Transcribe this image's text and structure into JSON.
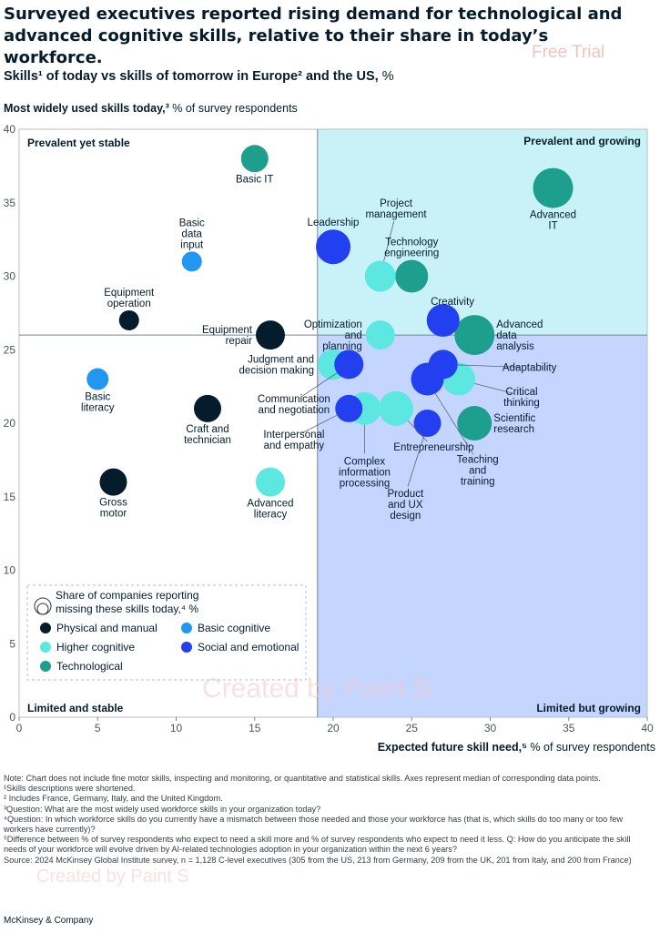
{
  "title": "Surveyed executives reported rising demand for technological and advanced cognitive skills, relative to their share in today’s workforce.",
  "watermark": "Free Trial",
  "watermark2": "Created by Paint S",
  "subtitle": {
    "bold": "Skills¹ of today vs skills of tomorrow in Europe² and the US,",
    "rest": " %"
  },
  "y_header": {
    "bold": "Most widely used skills today,³",
    "rest": " % of survey respondents"
  },
  "x_header": {
    "bold": "Expected future skill need,⁵",
    "rest": " % of survey respondents"
  },
  "colors": {
    "physical": "#051c2c",
    "basic_cognitive": "#2196f3",
    "higher_cognitive": "#5ce8e0",
    "social": "#2240f0",
    "technological": "#1e9e8c",
    "quadrant_top": "#c8f2f8",
    "quadrant_bottom": "#c4d6ff"
  },
  "chart_data": {
    "type": "scatter",
    "xlim": [
      0,
      40
    ],
    "ylim": [
      0,
      40
    ],
    "x_ticks": [
      0,
      5,
      10,
      15,
      20,
      25,
      30,
      35,
      40
    ],
    "y_ticks": [
      0,
      5,
      10,
      15,
      20,
      25,
      30,
      35,
      40
    ],
    "x_median": 19,
    "y_median": 26,
    "quadrants": {
      "top_left": "Prevalent yet stable",
      "top_right": "Prevalent and growing",
      "bottom_left": "Limited and stable",
      "bottom_right": "Limited but growing"
    },
    "legend": {
      "size_label": "Share of companies reporting missing these skills today,⁴ %",
      "size_label_line1": "Share of companies reporting",
      "size_label_line2": "missing these skills today,⁴ %",
      "categories": [
        {
          "key": "physical",
          "label": "Physical and manual"
        },
        {
          "key": "basic_cognitive",
          "label": "Basic cognitive"
        },
        {
          "key": "higher_cognitive",
          "label": "Higher cognitive"
        },
        {
          "key": "social",
          "label": "Social and emotional"
        },
        {
          "key": "technological",
          "label": "Technological"
        }
      ]
    },
    "points": [
      {
        "label": [
          "Basic IT"
        ],
        "x": 15,
        "y": 38,
        "r": 15,
        "cat": "technological",
        "pos": "below"
      },
      {
        "label": [
          "Basic",
          "data",
          "input"
        ],
        "x": 11,
        "y": 31,
        "r": 11,
        "cat": "basic_cognitive",
        "pos": "above"
      },
      {
        "label": [
          "Equipment",
          "operation"
        ],
        "x": 7,
        "y": 27,
        "r": 11,
        "cat": "physical",
        "pos": "above"
      },
      {
        "label": [
          "Equipment",
          "repair"
        ],
        "x": 16,
        "y": 26,
        "r": 16,
        "cat": "physical",
        "pos": "left"
      },
      {
        "label": [
          "Basic",
          "literacy"
        ],
        "x": 5,
        "y": 23,
        "r": 12,
        "cat": "basic_cognitive",
        "pos": "below"
      },
      {
        "label": [
          "Craft and",
          "technician"
        ],
        "x": 12,
        "y": 21,
        "r": 15,
        "cat": "physical",
        "pos": "below"
      },
      {
        "label": [
          "Gross",
          "motor"
        ],
        "x": 6,
        "y": 16,
        "r": 15,
        "cat": "physical",
        "pos": "below"
      },
      {
        "label": [
          "Advanced",
          "literacy"
        ],
        "x": 16,
        "y": 16,
        "r": 16,
        "cat": "higher_cognitive",
        "pos": "below"
      },
      {
        "label": [
          "Leadership"
        ],
        "x": 20,
        "y": 32,
        "r": 19,
        "cat": "social",
        "pos": "above"
      },
      {
        "label": [
          "Project",
          "management"
        ],
        "x": 23,
        "y": 30,
        "r": 17,
        "cat": "higher_cognitive",
        "pos": "callout",
        "lx": 24,
        "ly": 34.6
      },
      {
        "label": [
          "Technology",
          "engineering"
        ],
        "x": 25,
        "y": 30,
        "r": 18,
        "cat": "technological",
        "pos": "above"
      },
      {
        "label": [
          "Advanced",
          "IT"
        ],
        "x": 34,
        "y": 36,
        "r": 22,
        "cat": "technological",
        "pos": "below"
      },
      {
        "label": [
          "Optimization",
          "and",
          "planning"
        ],
        "x": 23,
        "y": 26,
        "r": 16,
        "cat": "higher_cognitive",
        "pos": "left"
      },
      {
        "label": [
          "Creativity"
        ],
        "x": 27,
        "y": 27,
        "r": 18,
        "cat": "social",
        "pos": "callout",
        "lx": 27.6,
        "ly": 28.3
      },
      {
        "label": [
          "Advanced",
          "data",
          "analysis"
        ],
        "x": 29,
        "y": 26,
        "r": 22,
        "cat": "technological",
        "pos": "right"
      },
      {
        "label": [
          "Judgment and",
          "decision making"
        ],
        "x": 20,
        "y": 24,
        "r": 17,
        "cat": "higher_cognitive",
        "pos": "left"
      },
      {
        "label": [
          "Communication",
          "and negotiation"
        ],
        "x": 21,
        "y": 24,
        "r": 16,
        "cat": "social",
        "pos": "callout",
        "lx": 17.5,
        "ly": 21.3
      },
      {
        "label": [
          "Adaptability"
        ],
        "x": 27,
        "y": 24,
        "r": 16,
        "cat": "social",
        "pos": "callout",
        "lx": 32.5,
        "ly": 23.8
      },
      {
        "label": [
          "Critical",
          "thinking"
        ],
        "x": 28,
        "y": 23,
        "r": 18,
        "cat": "higher_cognitive",
        "pos": "callout",
        "lx": 32,
        "ly": 21.8
      },
      {
        "label": [
          "Interpersonal",
          "and empathy"
        ],
        "x": 21,
        "y": 21,
        "r": 15,
        "cat": "social",
        "pos": "callout",
        "lx": 17.5,
        "ly": 18.9
      },
      {
        "label": [
          "Complex",
          "information",
          "processing"
        ],
        "x": 22,
        "y": 21,
        "r": 18,
        "cat": "higher_cognitive",
        "pos": "callout",
        "lx": 22,
        "ly": 16.7
      },
      {
        "label": [
          "Entrepreneurship"
        ],
        "x": 24,
        "y": 21,
        "r": 19,
        "cat": "higher_cognitive",
        "pos": "callout",
        "lx": 26.4,
        "ly": 18.4
      },
      {
        "label": [
          "Teaching",
          "and",
          "training"
        ],
        "x": 26,
        "y": 23,
        "r": 18,
        "cat": "social",
        "pos": "callout",
        "lx": 29.2,
        "ly": 16.8
      },
      {
        "label": [
          "Product",
          "and UX",
          "design"
        ],
        "x": 26,
        "y": 20,
        "r": 15,
        "cat": "social",
        "pos": "callout",
        "lx": 24.6,
        "ly": 14.5
      },
      {
        "label": [
          "Scientific",
          "research"
        ],
        "x": 29,
        "y": 20,
        "r": 19,
        "cat": "technological",
        "pos": "right"
      }
    ]
  },
  "notes": [
    "Note: Chart does not include fine motor skills, inspecting and monitoring, or quantitative and statistical skills. Axes represent median of corresponding data points.",
    "¹Skills descriptions were shortened.",
    "² Includes France, Germany, Italy, and the United Kingdom.",
    "³Question: What are the most widely used workforce skills in your organization today?",
    "⁴Question: In which workforce skills do you currently have a mismatch between those needed and those your workforce has (that is, which skills do too many or too few workers have currently)?",
    "⁵Difference between % of survey respondents who expect to need a skill more and % of survey respondents who expect to need it less. Q: How do you anticipate the skill needs of your workforce will evolve driven by AI-related technologies adoption in your organization within the next 6 years?",
    "Source: 2024 McKinsey Global Institute survey, n = 1,128 C-level executives (305 from the US, 213 from Germany, 209 from the UK, 201 from Italy, and 200 from France)"
  ],
  "brand": "McKinsey & Company"
}
